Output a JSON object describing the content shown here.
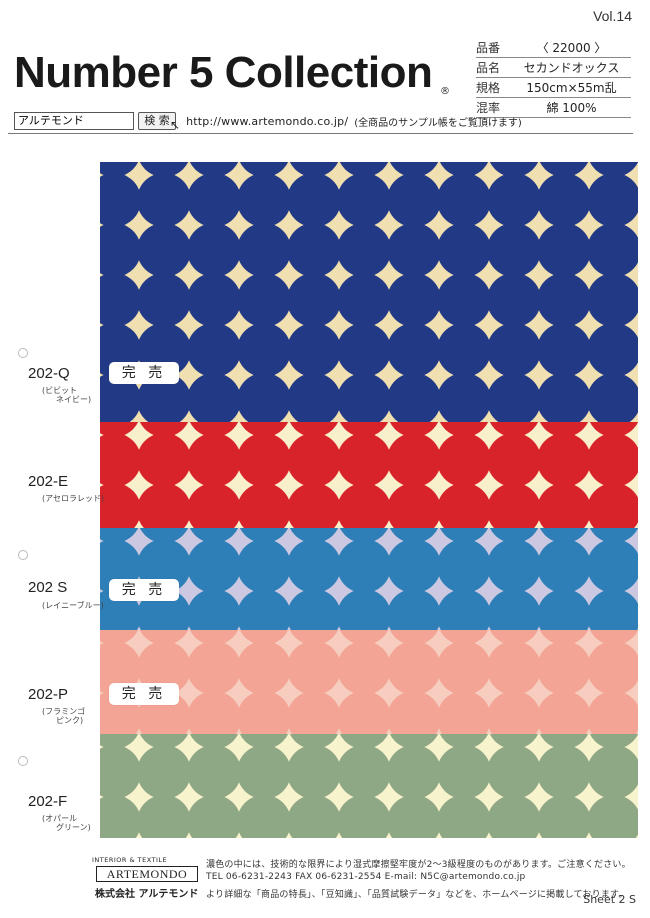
{
  "header": {
    "volume": "Vol.14",
    "title": "Number 5 Collection",
    "registered_mark": "®"
  },
  "specs": [
    {
      "label": "品番",
      "value": "〈 22000 〉"
    },
    {
      "label": "品名",
      "value": "セカンドオックス"
    },
    {
      "label": "規格",
      "value": "150cm×55m乱"
    },
    {
      "label": "混率",
      "value": "綿 100%"
    }
  ],
  "search": {
    "input_value": "アルテモンド",
    "button_label": "検 索",
    "url": "http://www.artemondo.co.jp/",
    "note": "(全商品のサンプル帳をご覧頂けます)"
  },
  "swatches": [
    {
      "code": "202-Q",
      "name_line1": "(ビビット",
      "name_line2": "ネイビー)",
      "dot": "#223a86",
      "bg": "#efdfb1",
      "soldout": "完 売"
    },
    {
      "code": "202-E",
      "name_line1": "(アセロラレッド)",
      "name_line2": "",
      "dot": "#d9232b",
      "bg": "#f8efcb",
      "soldout": ""
    },
    {
      "code": "202 S",
      "name_line1": "(レイニーブルー)",
      "name_line2": "",
      "dot": "#2e7fb8",
      "bg": "#ccc8e2",
      "soldout": "完 売"
    },
    {
      "code": "202-P",
      "name_line1": "(フラミンゴ",
      "name_line2": "ピンク)",
      "dot": "#f3a494",
      "bg": "#f6cdbf",
      "soldout": "完 売"
    },
    {
      "code": "202-F",
      "name_line1": "(オパール",
      "name_line2": "グリーン)",
      "dot": "#8ea784",
      "bg": "#f7f3cc",
      "soldout": ""
    }
  ],
  "footer": {
    "tagline": "INTERIOR & TEXTILE",
    "logo": "ARTEMONDO",
    "company": "株式会社 アルテモンド",
    "line1": "濃色の中には、技術的な限界により湿式摩擦堅牢度が2～3級程度のものがあります。ご注意ください。",
    "line2": "TEL 06-6231-2243  FAX 06-6231-2554  E-mail: N5C@artemondo.co.jp",
    "line3": "より詳細な「商品の特長」、「豆知識」、「品質試験データ」などを、ホームページに掲載しております。",
    "sheet": "Sheet 2 S"
  }
}
